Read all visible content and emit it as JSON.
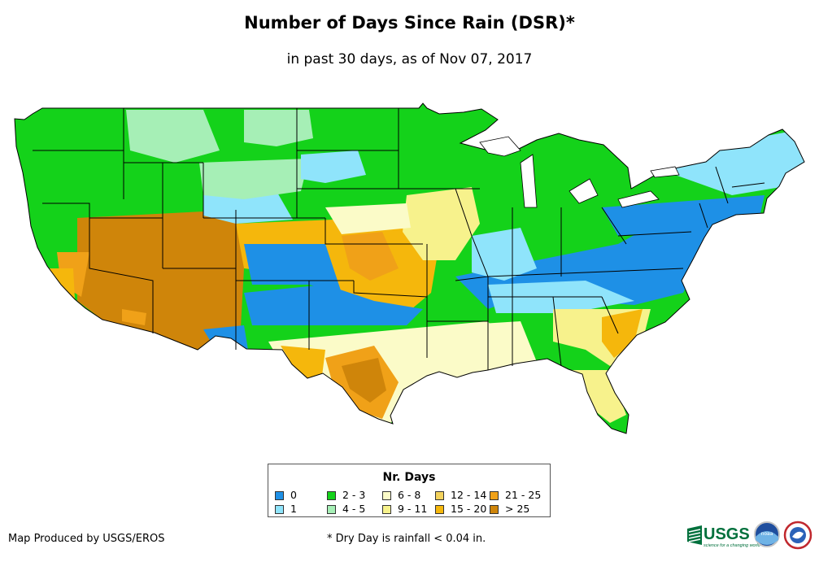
{
  "title": "Number of Days Since Rain (DSR)*",
  "subtitle": "in past 30 days, as of Nov 07, 2017",
  "legend": {
    "title": "Nr. Days",
    "items": [
      {
        "label": "0",
        "color": "#1e90e6"
      },
      {
        "label": "1",
        "color": "#8fe4fb"
      },
      {
        "label": "2 - 3",
        "color": "#14d21a"
      },
      {
        "label": "4 - 5",
        "color": "#a6efb6"
      },
      {
        "label": "6 - 8",
        "color": "#fbfbc8"
      },
      {
        "label": "9 - 11",
        "color": "#f7f28c"
      },
      {
        "label": "12 - 14",
        "color": "#f3d25c"
      },
      {
        "label": "15 - 20",
        "color": "#f5b70c"
      },
      {
        "label": "21 - 25",
        "color": "#f0a118"
      },
      {
        "label": "> 25",
        "color": "#cf850a"
      }
    ]
  },
  "credit": "Map Produced by USGS/EROS",
  "footnote": "* Dry Day is rainfall < 0.04 in.",
  "logos": {
    "usgs": "USGS",
    "usgs_tagline": "science for a changing world",
    "noaa": "noaa"
  }
}
